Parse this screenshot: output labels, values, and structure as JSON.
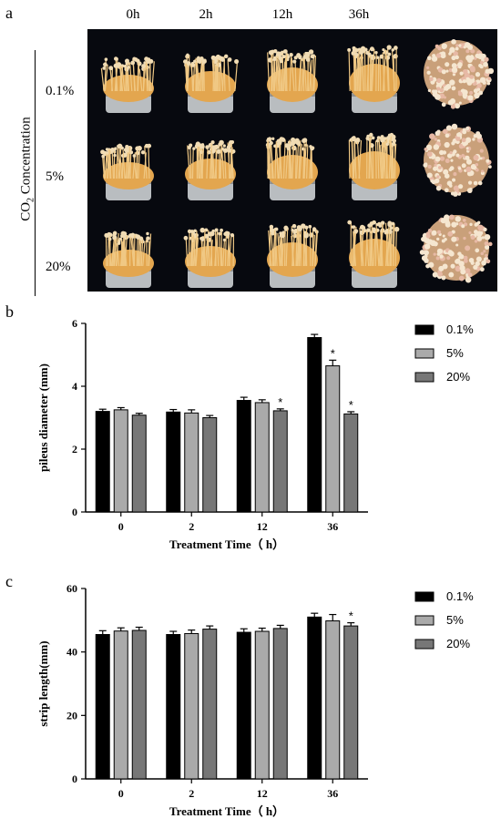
{
  "panels": {
    "a": "a",
    "b": "b",
    "c": "c"
  },
  "photo_panel": {
    "col_labels": [
      "0h",
      "2h",
      "12h",
      "36h"
    ],
    "row_labels": [
      "0.1%",
      "5%",
      "20%"
    ],
    "y_title_prefix": "CO",
    "y_title_sub": "2",
    "y_title_suffix": " Concentration"
  },
  "colors": {
    "photo_bg": "#07090f",
    "mushroom": "#e3a64f",
    "cap": "#f1dcb4",
    "jar": "#b9bdc0",
    "series_0_1": "#000000",
    "series_5": "#aaaaaa",
    "series_20": "#777777"
  },
  "chart_data": [
    {
      "type": "bar",
      "categories": [
        "0",
        "2",
        "12",
        "36"
      ],
      "series": [
        {
          "name": "0.1%",
          "values": [
            3.2,
            3.18,
            3.55,
            5.55
          ],
          "errors": [
            0.07,
            0.08,
            0.1,
            0.1
          ],
          "sig": [
            false,
            false,
            false,
            false
          ]
        },
        {
          "name": "5%",
          "values": [
            3.25,
            3.15,
            3.48,
            4.65
          ],
          "errors": [
            0.07,
            0.1,
            0.09,
            0.18
          ],
          "sig": [
            false,
            false,
            false,
            true
          ]
        },
        {
          "name": "20%",
          "values": [
            3.08,
            3.0,
            3.22,
            3.12
          ],
          "errors": [
            0.06,
            0.07,
            0.06,
            0.07
          ],
          "sig": [
            false,
            false,
            true,
            true
          ]
        }
      ],
      "xlabel": "Treatment Time（ h）",
      "ylabel": "pileus diameter (mm)",
      "ylim": [
        0,
        6
      ],
      "yticks": [
        0,
        2,
        4,
        6
      ],
      "marker": "*"
    },
    {
      "type": "bar",
      "categories": [
        "0",
        "2",
        "12",
        "36"
      ],
      "series": [
        {
          "name": "0.1%",
          "values": [
            45.5,
            45.5,
            46.2,
            51.0
          ],
          "errors": [
            1.2,
            1.0,
            1.1,
            1.2
          ],
          "sig": [
            false,
            false,
            false,
            false
          ]
        },
        {
          "name": "5%",
          "values": [
            46.6,
            45.8,
            46.5,
            49.8
          ],
          "errors": [
            1.0,
            1.1,
            1.0,
            2.0
          ],
          "sig": [
            false,
            false,
            false,
            false
          ]
        },
        {
          "name": "20%",
          "values": [
            46.8,
            47.2,
            47.4,
            48.2
          ],
          "errors": [
            1.0,
            1.0,
            1.0,
            1.0
          ],
          "sig": [
            false,
            false,
            false,
            true
          ]
        }
      ],
      "xlabel": "Treatment Time（ h）",
      "ylabel": "strip length(mm)",
      "ylim": [
        0,
        60
      ],
      "yticks": [
        0,
        20,
        40,
        60
      ],
      "marker": "*"
    }
  ]
}
